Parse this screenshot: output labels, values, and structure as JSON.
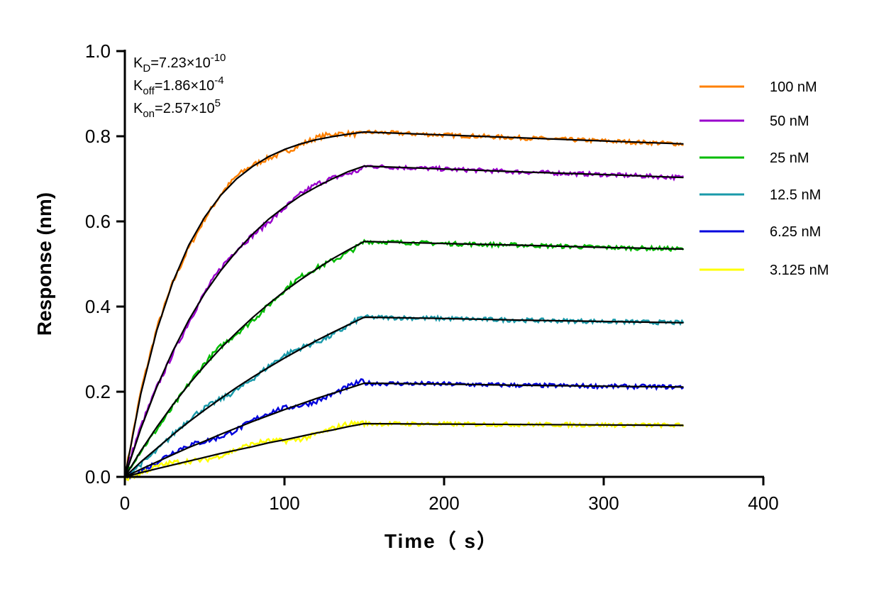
{
  "chart_data": {
    "type": "line",
    "xlabel": "Time（ s）",
    "ylabel": "Response (nm)",
    "xlim": [
      0,
      400
    ],
    "ylim": [
      0,
      1.0
    ],
    "xticks": [
      "0",
      "100",
      "200",
      "300",
      "400"
    ],
    "yticks": [
      "0.0",
      "0.2",
      "0.4",
      "0.6",
      "0.8",
      "1.0"
    ],
    "grid": false,
    "legend_position": "right",
    "annotations": [
      {
        "main": "K",
        "sub": "D",
        "value": "=7.23×10",
        "exp": "-10"
      },
      {
        "main": "K",
        "sub": "off",
        "value": "=1.86×10",
        "exp": "-4"
      },
      {
        "main": "K",
        "sub": "on",
        "value": "=2.57×10",
        "exp": "5"
      }
    ],
    "x": [
      0,
      10,
      20,
      30,
      40,
      50,
      60,
      70,
      80,
      90,
      100,
      110,
      120,
      130,
      140,
      150,
      200,
      250,
      300,
      350
    ],
    "fit_color": "#000000",
    "series": [
      {
        "name": "100 nM",
        "color": "#FF8000",
        "values": [
          0,
          0.195,
          0.344,
          0.457,
          0.544,
          0.61,
          0.661,
          0.7,
          0.729,
          0.752,
          0.769,
          0.782,
          0.792,
          0.799,
          0.805,
          0.81,
          0.803,
          0.796,
          0.789,
          0.782
        ]
      },
      {
        "name": "50 nM",
        "color": "#9900CC",
        "values": [
          0,
          0.113,
          0.211,
          0.295,
          0.368,
          0.431,
          0.484,
          0.53,
          0.57,
          0.605,
          0.634,
          0.66,
          0.681,
          0.7,
          0.717,
          0.73,
          0.723,
          0.716,
          0.71,
          0.703
        ]
      },
      {
        "name": "25 nM",
        "color": "#00BB00",
        "values": [
          0,
          0.061,
          0.117,
          0.169,
          0.217,
          0.261,
          0.302,
          0.339,
          0.374,
          0.406,
          0.436,
          0.463,
          0.488,
          0.512,
          0.533,
          0.553,
          0.548,
          0.544,
          0.539,
          0.535
        ]
      },
      {
        "name": "12.5 nM",
        "color": "#1A9AAA",
        "values": [
          0,
          0.035,
          0.067,
          0.099,
          0.129,
          0.157,
          0.184,
          0.21,
          0.234,
          0.257,
          0.279,
          0.3,
          0.32,
          0.339,
          0.357,
          0.375,
          0.372,
          0.368,
          0.365,
          0.362
        ]
      },
      {
        "name": "6.25 nM",
        "color": "#0000DD",
        "values": [
          0,
          0.018,
          0.035,
          0.052,
          0.069,
          0.084,
          0.1,
          0.115,
          0.13,
          0.144,
          0.158,
          0.171,
          0.184,
          0.196,
          0.208,
          0.22,
          0.218,
          0.215,
          0.213,
          0.211
        ]
      },
      {
        "name": "3.125 nM",
        "color": "#FFFF00",
        "values": [
          0,
          0.01,
          0.019,
          0.028,
          0.037,
          0.046,
          0.055,
          0.063,
          0.071,
          0.08,
          0.087,
          0.095,
          0.103,
          0.11,
          0.118,
          0.125,
          0.124,
          0.123,
          0.122,
          0.121
        ]
      }
    ]
  }
}
